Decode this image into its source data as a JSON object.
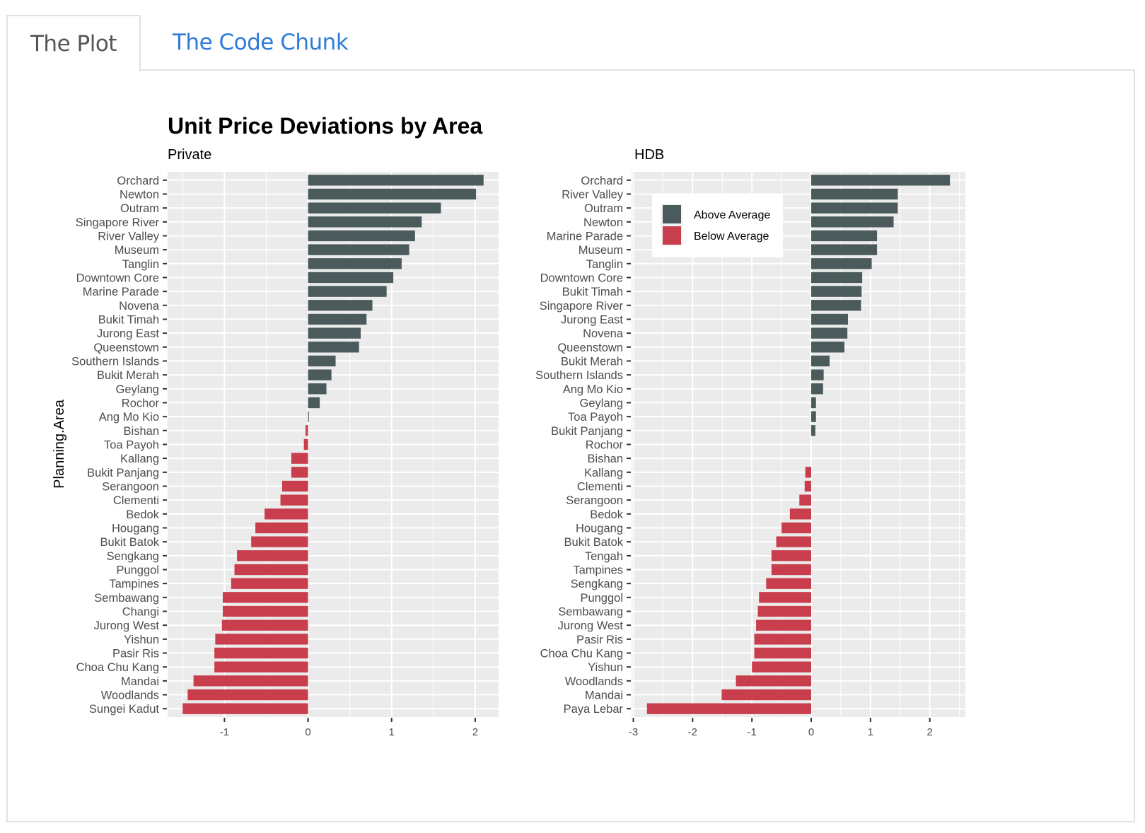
{
  "tabs": [
    {
      "label": "The Plot",
      "active": true
    },
    {
      "label": "The Code Chunk",
      "active": false
    }
  ],
  "colors": {
    "above": "#4b5a5b",
    "below": "#c83e4d",
    "panel_bg": "#ebebeb",
    "grid": "#ffffff",
    "tab_active_text": "#555555",
    "tab_link": "#2f7bd8"
  },
  "chart_data": [
    {
      "type": "bar",
      "orientation": "horizontal",
      "title": "Unit Price Deviations by Area",
      "subtitle": "Private",
      "xlabel": "",
      "ylabel": "Planning.Area",
      "xlim": [
        -1.68,
        2.28
      ],
      "xticks": [
        -1,
        0,
        1,
        2
      ],
      "grid": true,
      "categories": [
        "Orchard",
        "Newton",
        "Outram",
        "Singapore River",
        "River Valley",
        "Museum",
        "Tanglin",
        "Downtown Core",
        "Marine Parade",
        "Novena",
        "Bukit Timah",
        "Jurong East",
        "Queenstown",
        "Southern Islands",
        "Bukit Merah",
        "Geylang",
        "Rochor",
        "Ang Mo Kio",
        "Bishan",
        "Toa Payoh",
        "Kallang",
        "Bukit Panjang",
        "Serangoon",
        "Clementi",
        "Bedok",
        "Hougang",
        "Bukit Batok",
        "Sengkang",
        "Punggol",
        "Tampines",
        "Sembawang",
        "Changi",
        "Jurong West",
        "Yishun",
        "Pasir Ris",
        "Choa Chu Kang",
        "Mandai",
        "Woodlands",
        "Sungei Kadut"
      ],
      "values": [
        2.1,
        2.01,
        1.59,
        1.36,
        1.28,
        1.21,
        1.12,
        1.02,
        0.94,
        0.77,
        0.7,
        0.63,
        0.61,
        0.33,
        0.28,
        0.22,
        0.14,
        0.01,
        -0.03,
        -0.05,
        -0.2,
        -0.2,
        -0.31,
        -0.33,
        -0.52,
        -0.63,
        -0.68,
        -0.85,
        -0.88,
        -0.92,
        -1.02,
        -1.02,
        -1.03,
        -1.11,
        -1.12,
        -1.12,
        -1.37,
        -1.44,
        -1.5
      ]
    },
    {
      "type": "bar",
      "orientation": "horizontal",
      "title": "",
      "subtitle": "HDB",
      "xlabel": "",
      "ylabel": "",
      "xlim": [
        -3.03,
        2.6
      ],
      "xticks": [
        -3,
        -2,
        -1,
        0,
        1,
        2
      ],
      "grid": true,
      "legend": {
        "placement": "top-left",
        "entries": [
          {
            "label": "Above Average",
            "color": "#4b5a5b"
          },
          {
            "label": "Below Average",
            "color": "#c83e4d"
          }
        ]
      },
      "categories": [
        "Orchard",
        "River Valley",
        "Outram",
        "Newton",
        "Marine Parade",
        "Museum",
        "Tanglin",
        "Downtown Core",
        "Bukit Timah",
        "Singapore River",
        "Jurong East",
        "Novena",
        "Queenstown",
        "Bukit Merah",
        "Southern Islands",
        "Ang Mo Kio",
        "Geylang",
        "Toa Payoh",
        "Bukit Panjang",
        "Rochor",
        "Bishan",
        "Kallang",
        "Clementi",
        "Serangoon",
        "Bedok",
        "Hougang",
        "Bukit Batok",
        "Tengah",
        "Tampines",
        "Sengkang",
        "Punggol",
        "Sembawang",
        "Jurong West",
        "Pasir Ris",
        "Choa Chu Kang",
        "Yishun",
        "Woodlands",
        "Mandai",
        "Paya Lebar"
      ],
      "values": [
        2.34,
        1.46,
        1.46,
        1.39,
        1.11,
        1.11,
        1.02,
        0.86,
        0.85,
        0.84,
        0.62,
        0.61,
        0.56,
        0.31,
        0.21,
        0.2,
        0.08,
        0.08,
        0.07,
        0.0,
        0.0,
        -0.1,
        -0.11,
        -0.2,
        -0.36,
        -0.5,
        -0.59,
        -0.67,
        -0.67,
        -0.76,
        -0.88,
        -0.9,
        -0.93,
        -0.96,
        -0.96,
        -1.0,
        -1.27,
        -1.51,
        -2.77
      ]
    }
  ]
}
